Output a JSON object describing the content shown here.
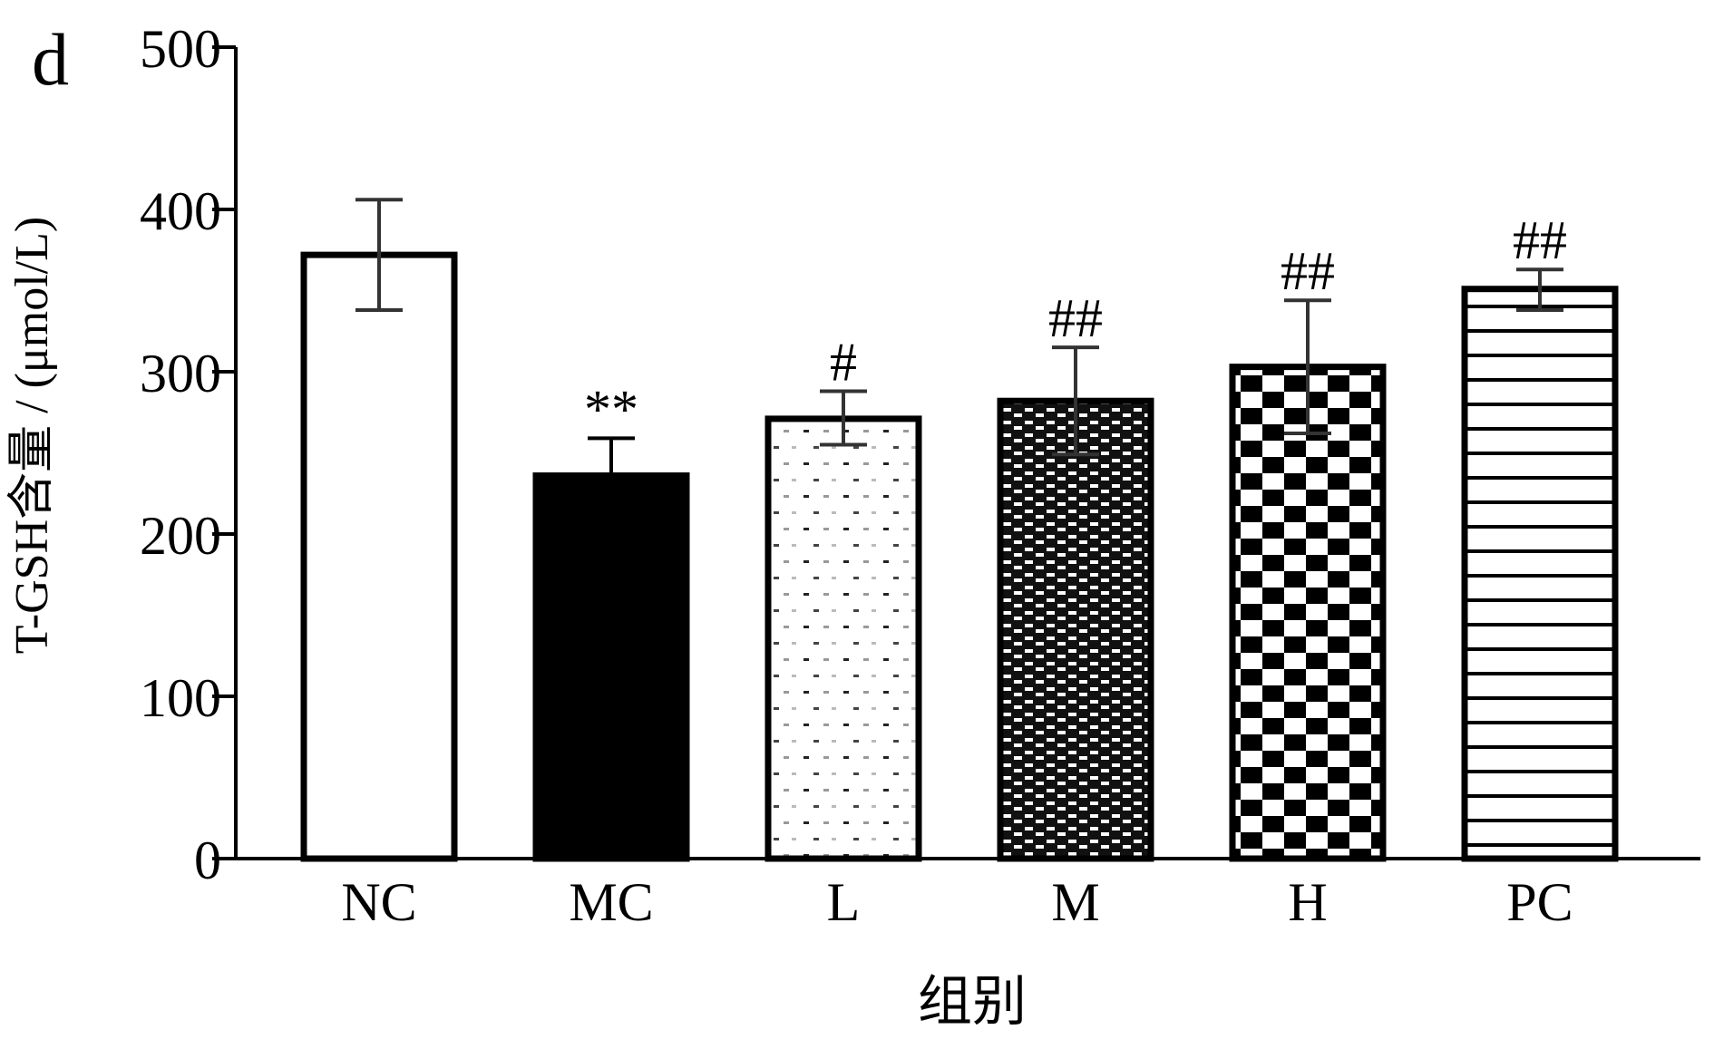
{
  "panel_label": "d",
  "chart_data": {
    "type": "bar",
    "xlabel": "组别",
    "ylabel": "T-GSH含量 / (μmol/L)",
    "ylim": [
      0,
      500
    ],
    "yticks": [
      0,
      100,
      200,
      300,
      400,
      500
    ],
    "categories": [
      "NC",
      "MC",
      "L",
      "M",
      "H",
      "PC"
    ],
    "values": [
      372,
      236,
      271,
      282,
      303,
      351
    ],
    "error_upper": [
      406,
      259,
      288,
      315,
      344,
      363
    ],
    "error_lower": [
      338,
      236,
      255,
      249,
      262,
      338
    ],
    "annotations": [
      "",
      "**",
      "#",
      "##",
      "##",
      "##"
    ],
    "fill_styles": [
      "white",
      "black",
      "sparse-dots",
      "dense-checker",
      "checker",
      "horizontal-lines"
    ]
  }
}
